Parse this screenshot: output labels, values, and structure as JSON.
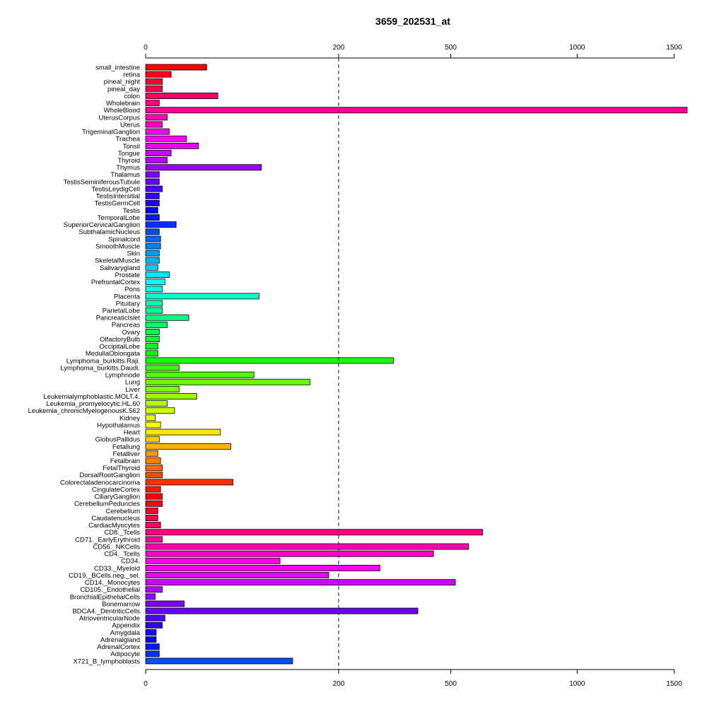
{
  "chart_data": {
    "type": "bar",
    "orientation": "horizontal",
    "title": "3659_202531_at",
    "xlabel": "",
    "ylabel": "",
    "scale": "sqrt",
    "xlim": [
      0,
      1575
    ],
    "x_ticks": [
      0,
      200,
      500,
      1000,
      1500
    ],
    "reference_line": 200,
    "grid": false,
    "categories": [
      "small_intestine",
      "retina",
      "pineal_night",
      "pineal_day",
      "colon",
      "Wholebrain",
      "WholeBlood",
      "UterusCorpus",
      "Uterus",
      "TrigeminalGanglion",
      "Trachea",
      "Tonsil",
      "Tongue",
      "Thyroid",
      "Thymus",
      "Thalamus",
      "TestisSeminiferousTubule",
      "TestisLeydigCell",
      "TestisIntersitial",
      "TestisGermCell",
      "Testis",
      "TemporalLobe",
      "SuperiorCervicalGanglion",
      "SubthalamicNucleus",
      "Spinalcord",
      "SmoothMuscle",
      "Skin",
      "SkeletalMuscle",
      "Salivarygland",
      "Prostate",
      "PrefrontalCortex",
      "Pons",
      "Placenta",
      "Pituitary",
      "ParietalLobe",
      "PancreaticIslet",
      "Pancreas",
      "Ovary",
      "OlfactoryBulb",
      "OccipitalLobe",
      "MedullaOblongata",
      "Lymphoma_burkitts.Raji.",
      "Lymphoma_burkitts.Daudi.",
      "Lymphnode",
      "Lung",
      "Liver",
      "Leukemialymphoblastic.MOLT.4.",
      "Leukemia_promyelocytic.HL.60",
      "Leukemia_chronicMyelogenousK.562",
      "Kidney",
      "Hypothalamus",
      "Heart",
      "GlobusPallidus",
      "Fetallung",
      "Fetalliver",
      "Fetalbrain",
      "FetalThyroid",
      "DorsalRootGanglion",
      "Colorectaladenocarcinoma",
      "CingulateCortex",
      "CiliaryGanglion",
      "CerebellumPeduncles",
      "Cerebellum",
      "Caudatenucleus",
      "CardiacMyocytes",
      "CD8._Tcells",
      "CD71._EarlyErythroid",
      "CD56._NKCells",
      "CD4._Tcells",
      "CD34.",
      "CD33._Myeloid",
      "CD19._BCells.neg._sel.",
      "CD14._Monocytes",
      "CD105._Endothelial",
      "BronchialEpithelialCells",
      "Bonemarrow",
      "BDCA4._DentriticCells",
      "AtrioventricularNode",
      "Appendix",
      "Amygdala",
      "Adrenalgland",
      "AdrenalCortex",
      "Adipocyte",
      "X721_B_lymphoblasts"
    ],
    "values": [
      20,
      3.5,
      1.5,
      1.5,
      28,
      1,
      1575,
      2.5,
      1.5,
      3,
      9,
      15,
      3.5,
      2.5,
      72,
      1,
      1,
      1.5,
      1,
      1,
      0.8,
      1,
      5,
      1,
      1.2,
      1.2,
      1,
      1,
      0.8,
      3,
      2,
      1.5,
      69,
      1.5,
      1.5,
      10,
      2.5,
      1,
      1,
      0.8,
      0.8,
      330,
      6,
      63,
      145,
      6,
      14,
      2.5,
      4.5,
      0.5,
      1.2,
      30,
      1,
      39,
      0.8,
      1.2,
      1.5,
      1.5,
      41,
      1.2,
      1.5,
      1.5,
      0.8,
      0.8,
      1.2,
      610,
      1.5,
      560,
      445,
      97,
      295,
      180,
      515,
      1.5,
      0.5,
      8,
      398,
      2,
      1.5,
      0.6,
      0.6,
      1,
      1,
      116
    ],
    "colors": [
      "#ff0000",
      "#ff0019",
      "#ff0033",
      "#ff004c",
      "#ff0066",
      "#ff0080",
      "#ff0099",
      "#ff00b3",
      "#ff00cc",
      "#ff00e6",
      "#ff00ff",
      "#e600ff",
      "#cc00ff",
      "#b300ff",
      "#9900ff",
      "#8000ff",
      "#6600ff",
      "#4c00ff",
      "#3300ff",
      "#1900ff",
      "#0000ff",
      "#0019ff",
      "#0033ff",
      "#004cff",
      "#0066ff",
      "#0080ff",
      "#0099ff",
      "#00b3ff",
      "#00ccff",
      "#00e6ff",
      "#00ffff",
      "#00ffe6",
      "#00ffcc",
      "#00ffb3",
      "#00ff99",
      "#00ff80",
      "#00ff66",
      "#00ff4c",
      "#00ff33",
      "#00ff19",
      "#00ff00",
      "#19ff00",
      "#33ff00",
      "#4cff00",
      "#66ff00",
      "#80ff00",
      "#99ff00",
      "#b3ff00",
      "#ccff00",
      "#e6ff00",
      "#ffff00",
      "#ffe600",
      "#ffcc00",
      "#ffb300",
      "#ff9900",
      "#ff8000",
      "#ff6600",
      "#ff4c00",
      "#ff3300",
      "#ff1900",
      "#ff0000",
      "#ff0019",
      "#ff0033",
      "#ff004c",
      "#ff0066",
      "#ff0080",
      "#ff0099",
      "#ff00b3",
      "#ff00cc",
      "#ff00e6",
      "#ff00ff",
      "#e600ff",
      "#cc00ff",
      "#b300ff",
      "#9900ff",
      "#8000ff",
      "#6600ff",
      "#4c00ff",
      "#3300ff",
      "#1900ff",
      "#0000ff",
      "#0019ff",
      "#0033ff",
      "#004cff"
    ]
  }
}
